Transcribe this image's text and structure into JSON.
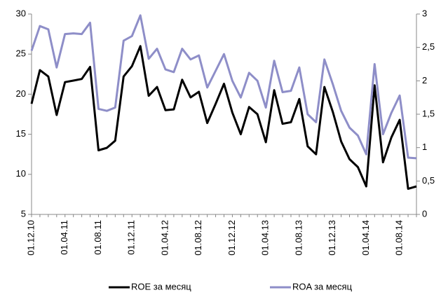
{
  "chart_data": {
    "type": "line",
    "categories": [
      "01.12.10",
      null,
      null,
      null,
      "01.04.11",
      null,
      null,
      null,
      "01.08.11",
      null,
      null,
      null,
      "01.12.11",
      null,
      null,
      null,
      "01.04.12",
      null,
      null,
      null,
      "01.08.12",
      null,
      null,
      null,
      "01.12.12",
      null,
      null,
      null,
      "01.04.13",
      null,
      null,
      null,
      "01.08.13",
      null,
      null,
      null,
      "01.12.13",
      null,
      null,
      null,
      "01.04.14",
      null,
      null,
      null,
      "01.08.14",
      null,
      null
    ],
    "series": [
      {
        "name": "ROE за месяц",
        "color": "#000000",
        "axis": "y",
        "values": [
          18.8,
          23.0,
          22.2,
          17.4,
          21.5,
          21.7,
          21.9,
          23.4,
          13.0,
          13.3,
          14.2,
          22.2,
          23.5,
          26.0,
          19.8,
          20.9,
          18.0,
          18.1,
          21.8,
          19.6,
          20.3,
          16.4,
          18.8,
          21.3,
          17.7,
          15.0,
          18.4,
          17.5,
          14.0,
          20.5,
          16.3,
          16.5,
          19.4,
          13.5,
          12.5,
          20.9,
          17.8,
          14.1,
          11.9,
          10.9,
          8.5,
          21.1,
          11.5,
          14.6,
          16.8,
          8.2,
          8.5
        ]
      },
      {
        "name": "ROA за месяц",
        "color": "#8e8ec8",
        "axis": "y2",
        "values": [
          2.45,
          2.82,
          2.77,
          2.2,
          2.7,
          2.71,
          2.7,
          2.87,
          1.58,
          1.55,
          1.6,
          2.6,
          2.67,
          2.98,
          2.33,
          2.48,
          2.17,
          2.13,
          2.48,
          2.32,
          2.38,
          1.9,
          2.15,
          2.4,
          2.0,
          1.75,
          2.12,
          2.0,
          1.6,
          2.3,
          1.83,
          1.85,
          2.2,
          1.5,
          1.38,
          2.32,
          1.95,
          1.55,
          1.3,
          1.18,
          0.9,
          2.25,
          1.2,
          1.52,
          1.78,
          0.85,
          0.84
        ]
      }
    ],
    "ylim": [
      5,
      30
    ],
    "yticks": [
      5,
      10,
      15,
      20,
      25,
      30
    ],
    "y2lim": [
      0,
      3
    ],
    "y2ticks": [
      0,
      {
        "value": 0.5,
        "label": "0,5"
      },
      1,
      {
        "value": 1.5,
        "label": "1,5"
      },
      2,
      {
        "value": 2.5,
        "label": "2,5"
      },
      3
    ],
    "grid": false,
    "legend": "bottom"
  }
}
